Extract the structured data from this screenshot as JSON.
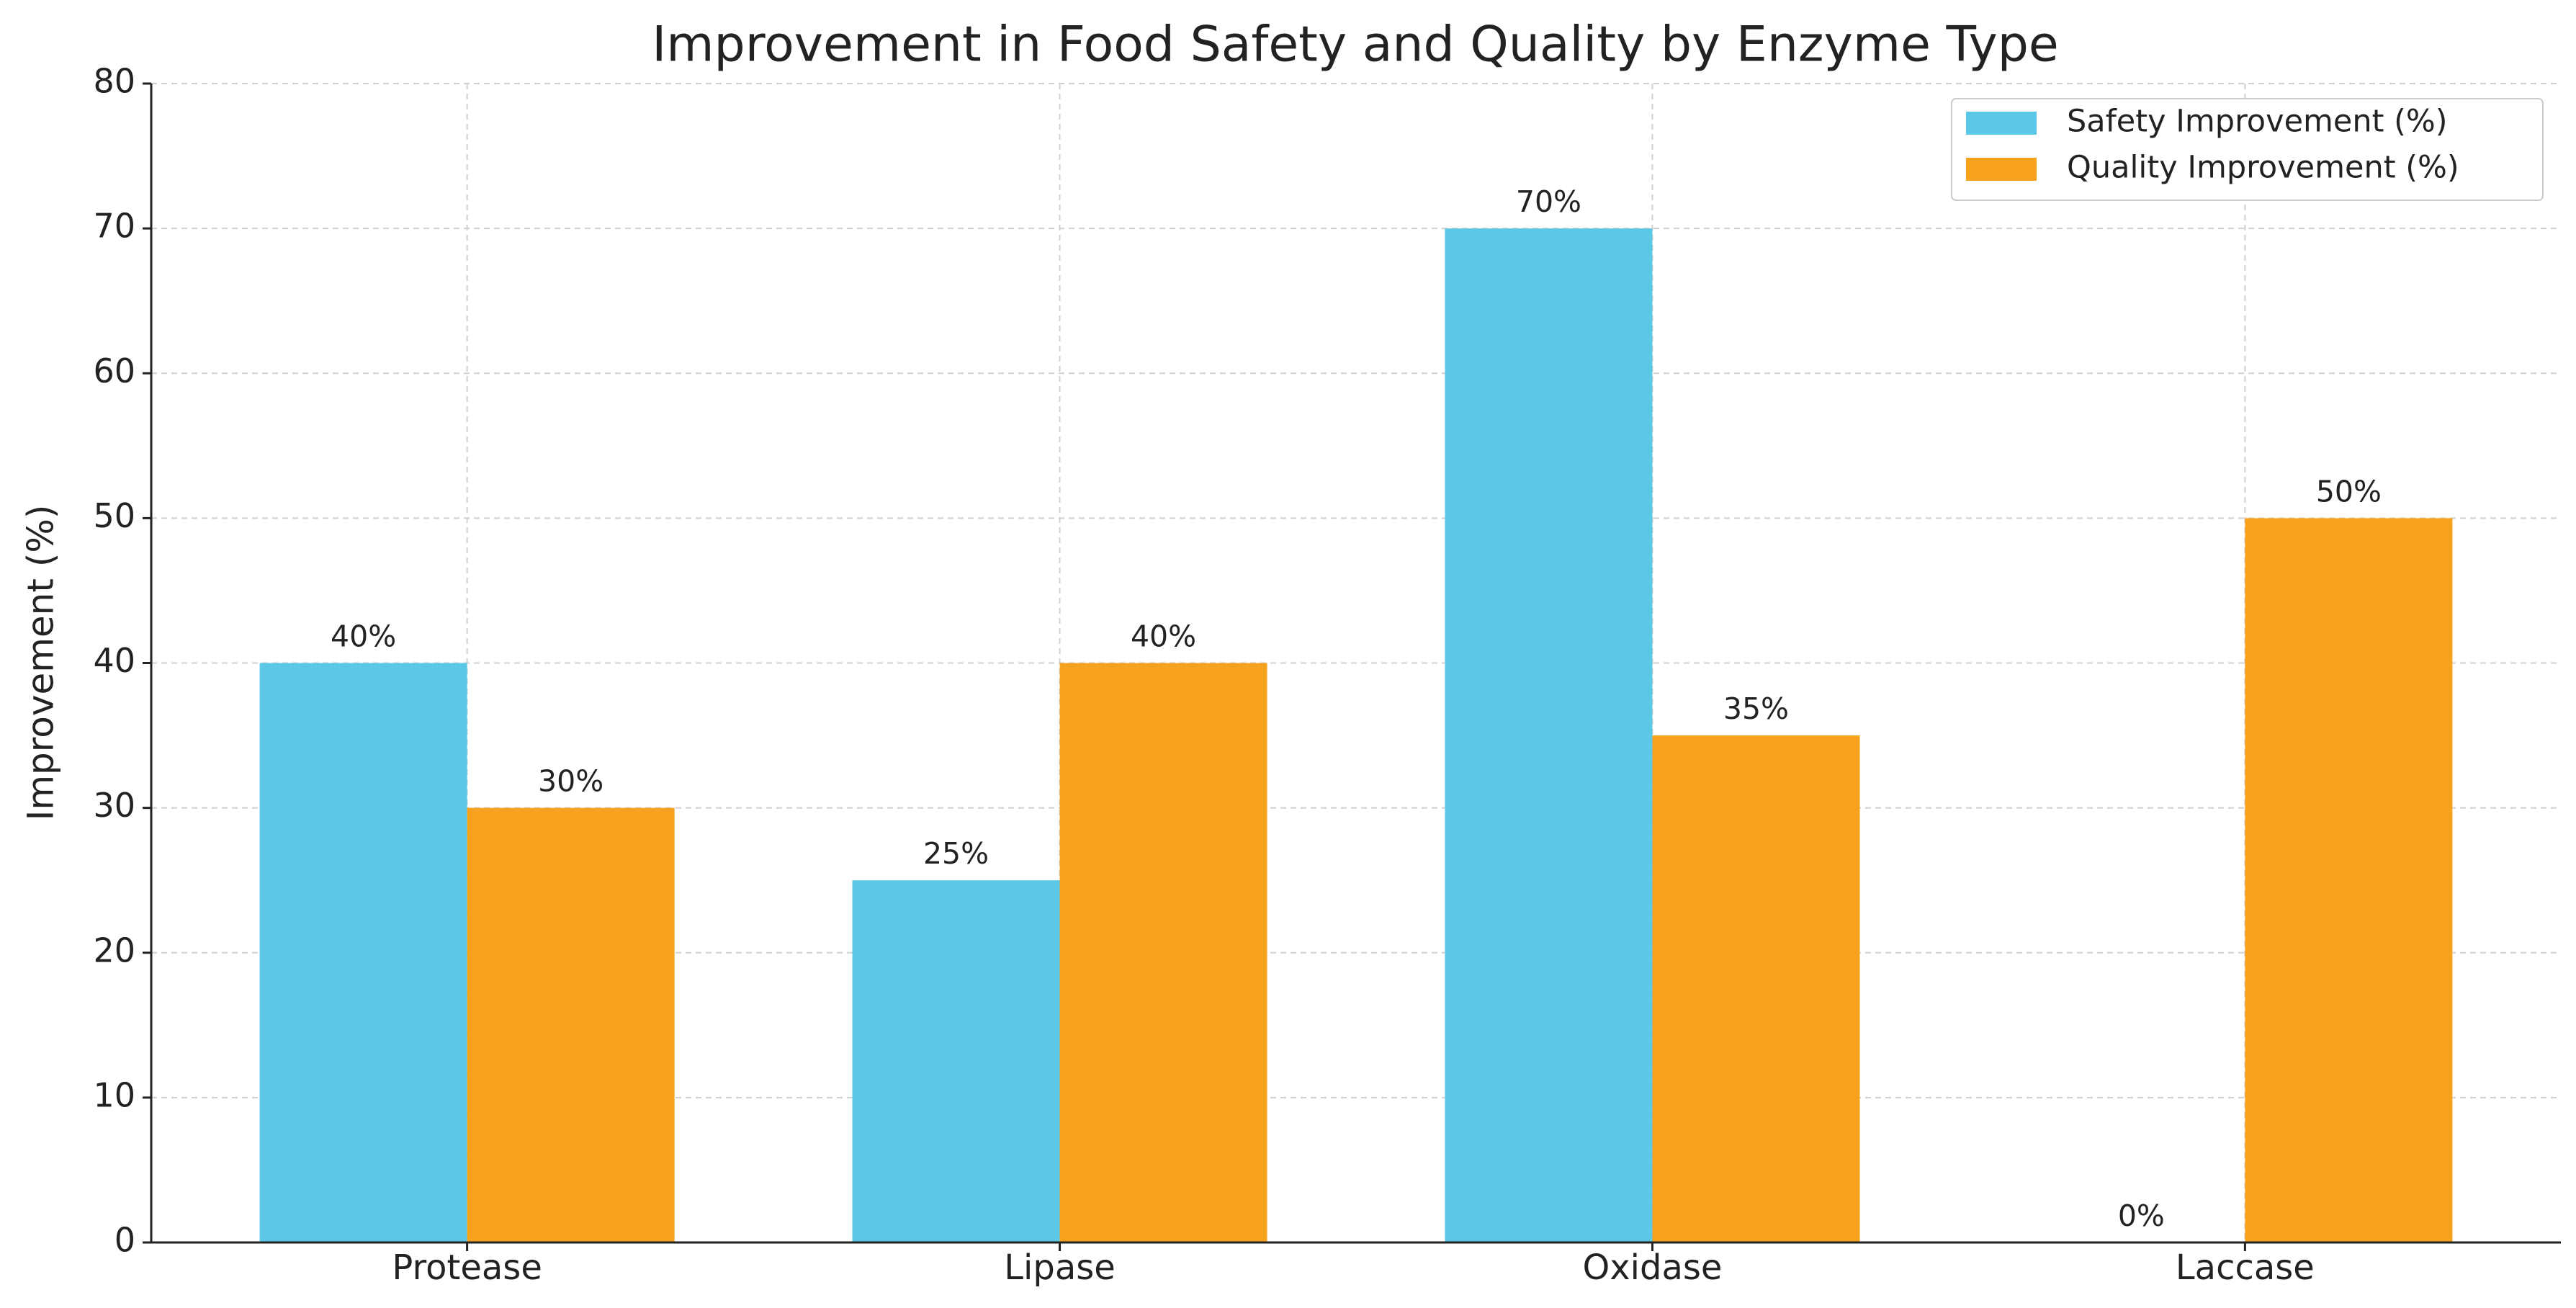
{
  "chart_data": {
    "type": "bar",
    "title": "Improvement in Food Safety and Quality by Enzyme Type",
    "y_label": "Improvement (%)",
    "categories": [
      "Protease",
      "Lipase",
      "Oxidase",
      "Laccase"
    ],
    "series": [
      {
        "name": "Safety Improvement (%)",
        "color": "#5bc8e8",
        "values": [
          40,
          25,
          70,
          0
        ],
        "value_labels": [
          "40%",
          "25%",
          "70%",
          "0%"
        ]
      },
      {
        "name": "Quality Improvement (%)",
        "color": "#f7a21e",
        "values": [
          30,
          40,
          35,
          50
        ],
        "value_labels": [
          "30%",
          "40%",
          "35%",
          "50%"
        ]
      }
    ],
    "ylim": [
      0,
      80
    ],
    "yticks": [
      0,
      10,
      20,
      30,
      40,
      50,
      60,
      70,
      80
    ],
    "grid": true,
    "legend": "upper right"
  }
}
